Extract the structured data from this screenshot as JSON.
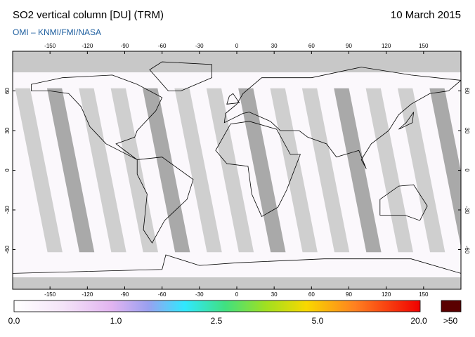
{
  "header": {
    "title": "SO2 vertical column [DU] (TRM)",
    "date": "10 March 2015",
    "credit": "OMI  –  KNMI/FMI/NASA"
  },
  "map": {
    "lon_ticks": [
      -150,
      -120,
      -90,
      -60,
      -30,
      0,
      30,
      60,
      90,
      120,
      150
    ],
    "lat_ticks": [
      60,
      30,
      0,
      -30,
      -60
    ]
  },
  "colorbar": {
    "labels": [
      "0.0",
      "1.0",
      "2.5",
      "5.0",
      "20.0",
      ">50"
    ]
  }
}
